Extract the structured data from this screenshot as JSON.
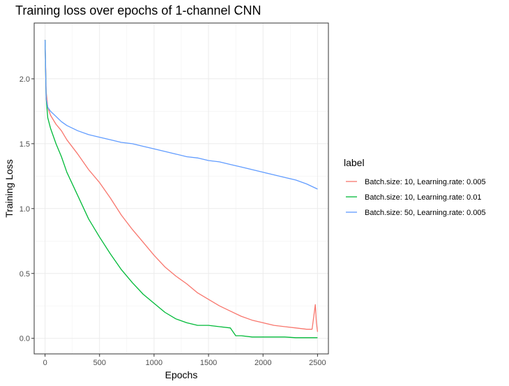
{
  "chart_data": {
    "type": "line",
    "title": "Training loss over epochs of 1-channel CNN",
    "xlabel": "Epochs",
    "ylabel": "Training Loss",
    "xlim": [
      -100,
      2600
    ],
    "ylim": [
      -0.12,
      2.43
    ],
    "x_ticks": [
      0,
      500,
      1000,
      1500,
      2000,
      2500
    ],
    "y_ticks": [
      0.0,
      0.5,
      1.0,
      1.5,
      2.0
    ],
    "x_tick_labels": [
      "0",
      "500",
      "1000",
      "1500",
      "2000",
      "2500"
    ],
    "y_tick_labels": [
      "0.0",
      "0.5",
      "1.0",
      "1.5",
      "2.0"
    ],
    "grid": true,
    "legend": {
      "title": "label",
      "position": "right"
    },
    "series": [
      {
        "name": "Batch.size: 10, Learning.rate: 0.005",
        "color": "#F8766D",
        "x": [
          0,
          10,
          25,
          50,
          100,
          150,
          200,
          300,
          400,
          500,
          600,
          700,
          800,
          900,
          1000,
          1100,
          1200,
          1300,
          1400,
          1500,
          1600,
          1700,
          1800,
          1900,
          2000,
          2100,
          2200,
          2300,
          2400,
          2450,
          2480,
          2490,
          2500
        ],
        "values": [
          2.3,
          1.9,
          1.78,
          1.72,
          1.65,
          1.6,
          1.53,
          1.42,
          1.3,
          1.2,
          1.08,
          0.95,
          0.84,
          0.74,
          0.64,
          0.55,
          0.48,
          0.42,
          0.35,
          0.3,
          0.25,
          0.21,
          0.17,
          0.14,
          0.12,
          0.1,
          0.09,
          0.08,
          0.07,
          0.07,
          0.26,
          0.12,
          0.05
        ]
      },
      {
        "name": "Batch.size: 10, Learning.rate: 0.01",
        "color": "#00BA38",
        "x": [
          0,
          10,
          25,
          50,
          100,
          150,
          200,
          300,
          400,
          500,
          600,
          700,
          800,
          900,
          1000,
          1100,
          1200,
          1300,
          1400,
          1500,
          1600,
          1700,
          1750,
          1800,
          1900,
          2000,
          2100,
          2200,
          2300,
          2400,
          2500
        ],
        "values": [
          2.3,
          1.85,
          1.7,
          1.62,
          1.5,
          1.4,
          1.28,
          1.1,
          0.92,
          0.78,
          0.65,
          0.53,
          0.43,
          0.34,
          0.27,
          0.2,
          0.15,
          0.12,
          0.1,
          0.1,
          0.09,
          0.08,
          0.02,
          0.02,
          0.01,
          0.01,
          0.01,
          0.01,
          0.005,
          0.005,
          0.005
        ]
      },
      {
        "name": "Batch.size: 50, Learning.rate: 0.005",
        "color": "#619CFF",
        "x": [
          0,
          10,
          25,
          50,
          100,
          150,
          200,
          300,
          400,
          500,
          600,
          700,
          800,
          900,
          1000,
          1100,
          1200,
          1300,
          1400,
          1500,
          1600,
          1700,
          1800,
          1900,
          2000,
          2100,
          2200,
          2300,
          2400,
          2500
        ],
        "values": [
          2.3,
          1.85,
          1.78,
          1.75,
          1.71,
          1.67,
          1.64,
          1.6,
          1.57,
          1.55,
          1.53,
          1.51,
          1.5,
          1.48,
          1.46,
          1.44,
          1.42,
          1.4,
          1.39,
          1.37,
          1.36,
          1.34,
          1.32,
          1.3,
          1.28,
          1.26,
          1.24,
          1.22,
          1.19,
          1.15
        ]
      }
    ]
  }
}
